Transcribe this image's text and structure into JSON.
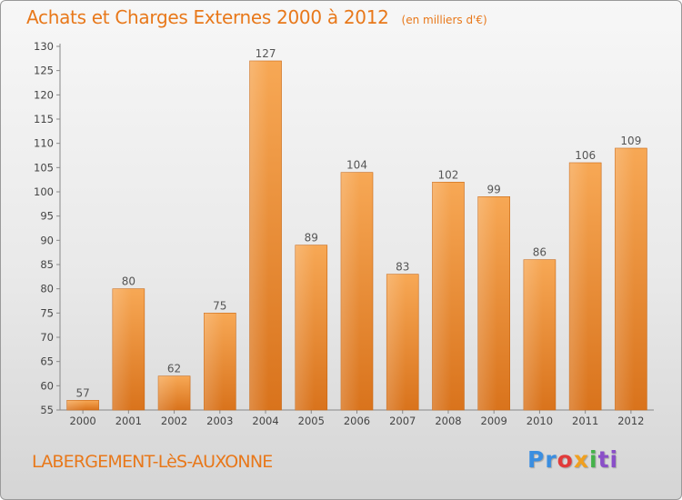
{
  "chart_data": {
    "type": "bar",
    "title": "Achats et Charges Externes 2000 à 2012",
    "subtitle": "(en milliers d'€)",
    "categories": [
      "2000",
      "2001",
      "2002",
      "2003",
      "2004",
      "2005",
      "2006",
      "2007",
      "2008",
      "2009",
      "2010",
      "2011",
      "2012"
    ],
    "values": [
      57,
      80,
      62,
      75,
      127,
      89,
      104,
      83,
      102,
      99,
      86,
      106,
      109
    ],
    "ylim": [
      55,
      130
    ],
    "yticks": [
      55,
      60,
      65,
      70,
      75,
      80,
      85,
      90,
      95,
      100,
      105,
      110,
      115,
      120,
      125,
      130
    ],
    "grid": false,
    "legend": "none",
    "bar_color_top": "#f7a855",
    "bar_color_bottom": "#d9731c",
    "text_color": "#e8781a"
  },
  "place_name": "LABERGEMENT-LèS-AUXONNE",
  "logo": {
    "text": "Proxiti",
    "letters": [
      "Pr",
      "o",
      "x",
      "i",
      "ti"
    ]
  }
}
